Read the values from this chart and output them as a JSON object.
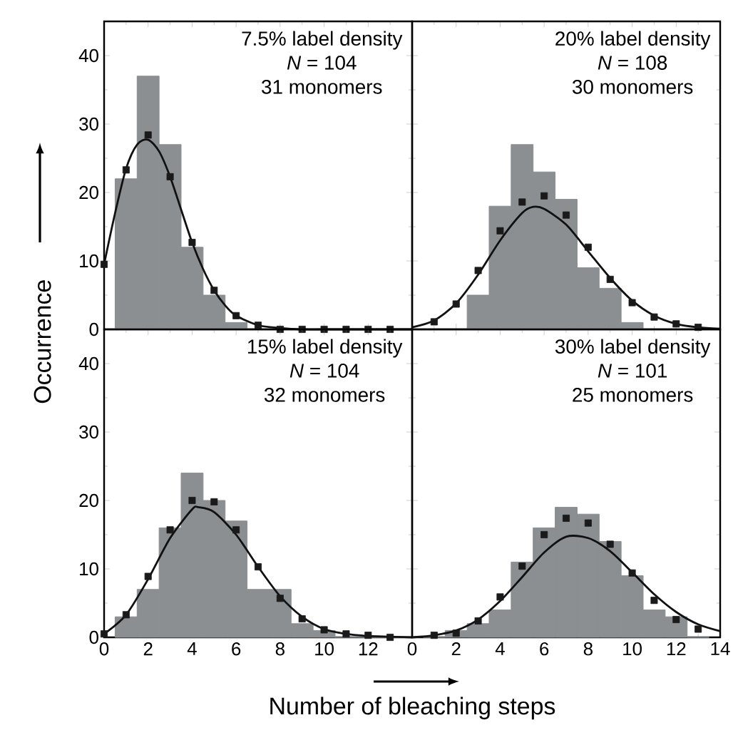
{
  "chart_data": [
    {
      "type": "histogram",
      "ylabel": "Occurrence",
      "annotations": [
        "7.5% label density",
        "*N* = 104",
        "31 monomers"
      ],
      "bins": [
        0.5,
        1.5,
        2.5,
        3.5,
        4.5,
        5.5,
        6.5,
        7.5,
        8.5,
        9.5,
        10.5,
        11.5,
        12.5,
        13.5
      ],
      "values": [
        22,
        37,
        27,
        12,
        5,
        1,
        0,
        0,
        0,
        0,
        0,
        0,
        0
      ],
      "color": "#8b8f92",
      "xlim": [
        0,
        14
      ],
      "ylim": [
        0,
        45
      ],
      "xticks": [
        0,
        2,
        4,
        6,
        8,
        10,
        12,
        14
      ],
      "yticks": [
        0,
        10,
        20,
        30,
        40
      ],
      "tick_labels": "y",
      "series": [
        {
          "type": "scatter",
          "marker": "square",
          "color": "#1a1a1a",
          "x": [
            0,
            1,
            2,
            3,
            4,
            5,
            6,
            7,
            8,
            9,
            10,
            11,
            12,
            13
          ],
          "values": [
            9.5,
            23.3,
            28.4,
            22.3,
            12.7,
            5.7,
            2.0,
            0.6,
            0,
            0,
            0,
            0,
            0,
            0
          ]
        },
        {
          "type": "line",
          "color": "#111111",
          "x": [
            0,
            0.5,
            1,
            1.5,
            2,
            2.5,
            3,
            3.5,
            4,
            4.5,
            5,
            5.5,
            6,
            7,
            8,
            9,
            10,
            12,
            14
          ],
          "values": [
            9.5,
            17,
            23.5,
            27,
            27.7,
            26,
            22.3,
            17.5,
            12.7,
            8.8,
            5.7,
            3.5,
            2,
            0.6,
            0.2,
            0,
            0,
            0,
            0
          ]
        }
      ]
    },
    {
      "type": "histogram",
      "annotations": [
        "20% label density",
        "*N* = 108",
        "30 monomers"
      ],
      "bins": [
        0.5,
        1.5,
        2.5,
        3.5,
        4.5,
        5.5,
        6.5,
        7.5,
        8.5,
        9.5,
        10.5,
        11.5,
        12.5,
        13.5
      ],
      "values": [
        0,
        0,
        5,
        18,
        27,
        23,
        19,
        9,
        6,
        1,
        0,
        0,
        0
      ],
      "color": "#8b8f92",
      "xlim": [
        0,
        14
      ],
      "ylim": [
        0,
        45
      ],
      "xticks": [
        0,
        2,
        4,
        6,
        8,
        10,
        12,
        14
      ],
      "yticks": [
        0,
        10,
        20,
        30,
        40
      ],
      "tick_labels": false,
      "series": [
        {
          "type": "scatter",
          "marker": "square",
          "color": "#1a1a1a",
          "x": [
            1,
            2,
            3,
            4,
            5,
            6,
            7,
            8,
            9,
            10,
            11,
            12,
            13
          ],
          "values": [
            1.1,
            3.7,
            8.6,
            14.4,
            18.6,
            19.5,
            16.7,
            12.0,
            7.3,
            3.9,
            1.8,
            0.8,
            0.3
          ]
        },
        {
          "type": "line",
          "color": "#111111",
          "x": [
            0,
            1,
            2,
            3,
            4,
            5,
            5.5,
            6,
            7,
            8,
            9,
            10,
            11,
            12,
            13,
            14
          ],
          "values": [
            0.3,
            1.3,
            3.8,
            8,
            13,
            17,
            17.9,
            17.6,
            15.3,
            11.4,
            7.5,
            4.2,
            2,
            0.8,
            0.3,
            0.1
          ]
        }
      ]
    },
    {
      "type": "histogram",
      "xlabel": "Number of bleaching steps",
      "annotations": [
        "15% label density",
        "*N* = 104",
        "32   monomers"
      ],
      "bins": [
        0.5,
        1.5,
        2.5,
        3.5,
        4.5,
        5.5,
        6.5,
        7.5,
        8.5,
        9.5,
        10.5,
        11.5,
        12.5,
        13.5
      ],
      "values": [
        3,
        7,
        16,
        24,
        20,
        17,
        7,
        7,
        2,
        1,
        0,
        0,
        0
      ],
      "color": "#8b8f92",
      "xlim": [
        0,
        14
      ],
      "ylim": [
        0,
        45
      ],
      "xticks": [
        0,
        2,
        4,
        6,
        8,
        10,
        12,
        {
          "value": 14,
          "label": null
        }
      ],
      "yticks": [
        0,
        10,
        20,
        30,
        40
      ],
      "series": [
        {
          "type": "scatter",
          "marker": "square",
          "color": "#1a1a1a",
          "x": [
            0,
            1,
            2,
            3,
            4,
            5,
            6,
            7,
            8,
            9,
            10,
            11,
            12,
            13
          ],
          "values": [
            0.5,
            3.3,
            8.9,
            15.7,
            20,
            19.8,
            15.7,
            10.3,
            5.7,
            2.7,
            1.1,
            0.5,
            0.3,
            0
          ]
        },
        {
          "type": "line",
          "color": "#111111",
          "x": [
            0,
            1,
            2,
            3,
            4,
            4.3,
            5,
            6,
            7,
            8,
            9,
            10,
            11,
            12,
            14
          ],
          "values": [
            0.5,
            3.3,
            8.5,
            14.5,
            18.7,
            19,
            18.3,
            15,
            10.3,
            6,
            3,
            1.2,
            0.5,
            0.2,
            0
          ]
        }
      ]
    },
    {
      "type": "histogram",
      "annotations": [
        "30% label density",
        "*N* = 101",
        "25   monomers"
      ],
      "bins": [
        0.5,
        1.5,
        2.5,
        3.5,
        4.5,
        5.5,
        6.5,
        7.5,
        8.5,
        9.5,
        10.5,
        11.5,
        12.5,
        13.5
      ],
      "values": [
        0,
        1,
        2,
        4,
        11,
        16,
        19,
        18,
        14,
        9,
        4,
        3,
        0
      ],
      "color": "#8b8f92",
      "xlim": [
        0,
        14
      ],
      "ylim": [
        0,
        45
      ],
      "xticks": [
        0,
        2,
        4,
        6,
        8,
        10,
        12,
        14
      ],
      "yticks": [
        0,
        10,
        20,
        30,
        40
      ],
      "tick_labels": "x",
      "series": [
        {
          "type": "scatter",
          "marker": "square",
          "color": "#1a1a1a",
          "x": [
            1,
            2,
            3,
            4,
            5,
            6,
            7,
            8,
            9,
            10,
            11,
            12,
            13
          ],
          "values": [
            0.3,
            0.6,
            2.4,
            5.9,
            10.4,
            15,
            17.4,
            16.7,
            13.6,
            9.4,
            5.4,
            2.6,
            1.2
          ]
        },
        {
          "type": "line",
          "color": "#111111",
          "x": [
            0,
            1,
            2,
            3,
            4,
            5,
            6,
            7,
            8,
            9,
            10,
            11,
            12,
            13,
            14
          ],
          "values": [
            0,
            0.3,
            1,
            2.6,
            5.3,
            8.8,
            12.4,
            14.7,
            14.5,
            12.6,
            9.5,
            6.3,
            3.7,
            1.9,
            0.9
          ]
        }
      ]
    }
  ]
}
